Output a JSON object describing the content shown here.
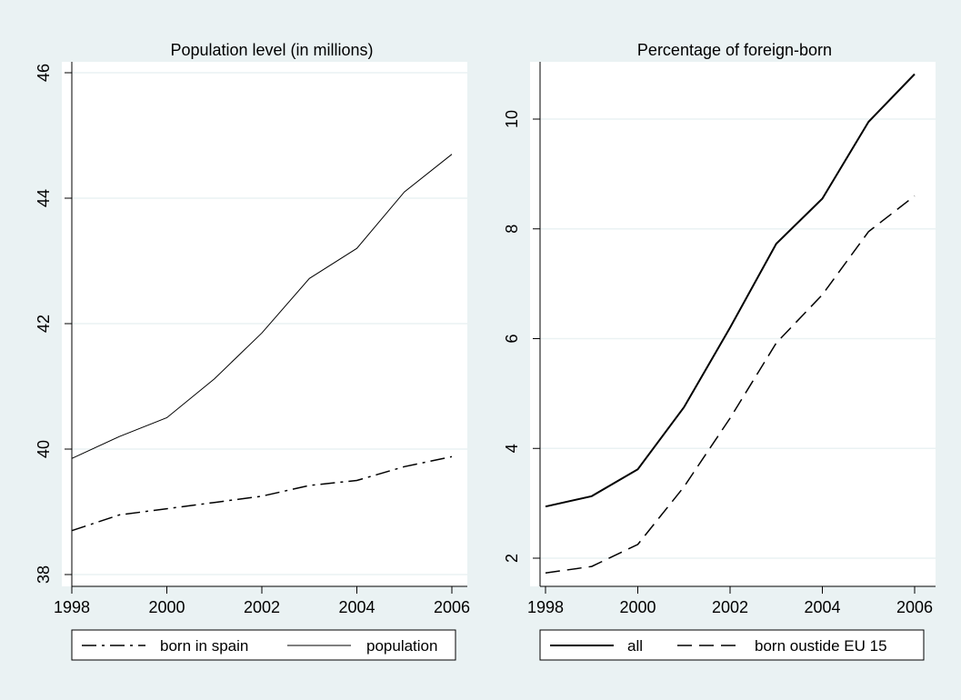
{
  "colors": {
    "background": "#eaf2f3",
    "plot_bg": "#ffffff",
    "line": "#000000"
  },
  "chart_data": [
    {
      "type": "line",
      "title": "Population level (in millions)",
      "xlabel": "",
      "ylabel": "",
      "xlim": [
        1998,
        2006
      ],
      "ylim": [
        38,
        46
      ],
      "x_ticks": [
        1998,
        2000,
        2002,
        2004,
        2006
      ],
      "y_ticks": [
        38,
        40,
        42,
        44,
        46
      ],
      "grid": true,
      "legend_position": "bottom",
      "x": [
        1998,
        1999,
        2000,
        2001,
        2002,
        2003,
        2004,
        2005,
        2006
      ],
      "series": [
        {
          "name": "born in spain",
          "style": "dash-dot",
          "values": [
            38.7,
            38.95,
            39.05,
            39.15,
            39.25,
            39.42,
            39.5,
            39.72,
            39.88
          ]
        },
        {
          "name": "population",
          "style": "solid-thin",
          "values": [
            39.85,
            40.2,
            40.5,
            41.12,
            41.85,
            42.72,
            43.2,
            44.1,
            44.7
          ]
        }
      ]
    },
    {
      "type": "line",
      "title": "Percentage of foreign-born",
      "xlabel": "",
      "ylabel": "",
      "xlim": [
        1998,
        2006
      ],
      "ylim": [
        1.6,
        11.0
      ],
      "x_ticks": [
        1998,
        2000,
        2002,
        2004,
        2006
      ],
      "y_ticks": [
        2,
        4,
        6,
        8,
        10
      ],
      "grid": true,
      "legend_position": "bottom",
      "x": [
        1998,
        1999,
        2000,
        2001,
        2002,
        2003,
        2004,
        2005,
        2006
      ],
      "series": [
        {
          "name": "all",
          "style": "solid",
          "values": [
            2.94,
            3.13,
            3.62,
            4.75,
            6.2,
            7.73,
            8.55,
            9.95,
            10.82
          ]
        },
        {
          "name": "born oustide EU 15",
          "style": "dashed",
          "values": [
            1.73,
            1.85,
            2.25,
            3.3,
            4.55,
            5.92,
            6.8,
            7.95,
            8.6
          ]
        }
      ]
    }
  ]
}
